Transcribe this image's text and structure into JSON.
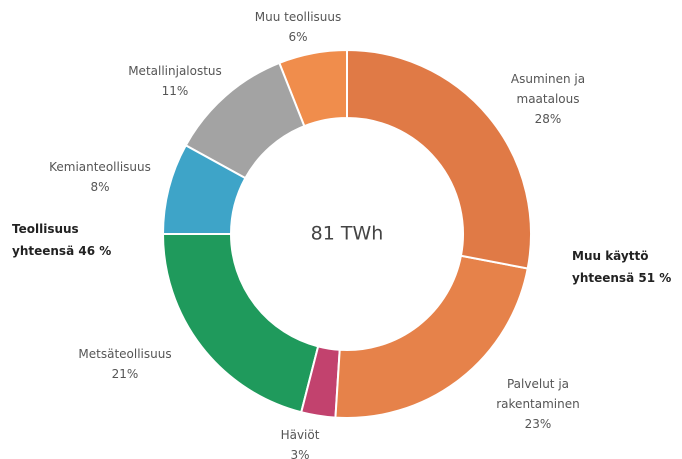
{
  "chart_data": {
    "type": "donut",
    "center_label": "81 TWh",
    "categories": [
      "Asuminen ja maatalous",
      "Palvelut ja rakentaminen",
      "Häviöt",
      "Metsäteollisuus",
      "Kemianteollisuus",
      "Metallinjalostus",
      "Muu teollisuus"
    ],
    "values": [
      28,
      23,
      3,
      21,
      8,
      11,
      6
    ],
    "value_labels": [
      "28%",
      "23%",
      "3%",
      "21%",
      "8%",
      "11%",
      "6%"
    ],
    "colors": [
      "#e07a46",
      "#e6824a",
      "#c2426e",
      "#1f9a5c",
      "#3ea4c8",
      "#a3a3a3",
      "#f08d4c"
    ],
    "annotations": [
      "Muu käyttö yhteensä 51 %",
      "Teollisuus yhteensä 46 %"
    ]
  }
}
